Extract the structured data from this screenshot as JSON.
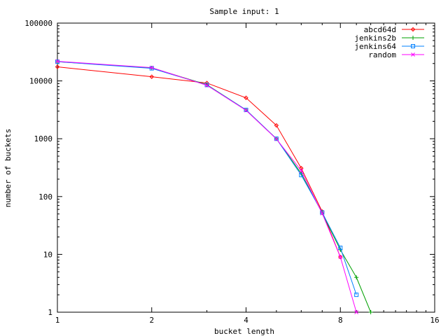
{
  "chart_data": {
    "type": "line",
    "title": "Sample input: 1",
    "xlabel": "bucket length",
    "ylabel": "number of buckets",
    "xscale": "log2",
    "yscale": "log10",
    "xlim": [
      1,
      16
    ],
    "ylim": [
      1,
      100000
    ],
    "x_ticks": [
      1,
      2,
      4,
      8,
      16
    ],
    "y_ticks": [
      1,
      10,
      100,
      1000,
      10000,
      100000
    ],
    "x_tick_labels": [
      "1",
      "2",
      "4",
      "8",
      "16"
    ],
    "y_tick_labels": [
      "1",
      "10",
      "100",
      "1000",
      "10000",
      "100000"
    ],
    "grid": false,
    "legend_position": "top-right",
    "series": [
      {
        "name": "abcd64d",
        "color": "#ff0000",
        "marker": "diamond",
        "points": [
          [
            1,
            17500
          ],
          [
            2,
            11800
          ],
          [
            3,
            9200
          ],
          [
            4,
            5100
          ],
          [
            5,
            1700
          ],
          [
            6,
            310
          ],
          [
            7,
            55
          ],
          [
            8,
            9
          ]
        ]
      },
      {
        "name": "jenkins2b",
        "color": "#00a000",
        "marker": "plus",
        "points": [
          [
            1,
            21500
          ],
          [
            2,
            16800
          ],
          [
            3,
            8600
          ],
          [
            4,
            3150
          ],
          [
            5,
            1000
          ],
          [
            6,
            250
          ],
          [
            7,
            52
          ],
          [
            8,
            12
          ],
          [
            9,
            4
          ],
          [
            10,
            1
          ]
        ]
      },
      {
        "name": "jenkins64",
        "color": "#0080ff",
        "marker": "square",
        "points": [
          [
            1,
            21500
          ],
          [
            2,
            16500
          ],
          [
            3,
            8500
          ],
          [
            4,
            3150
          ],
          [
            5,
            1000
          ],
          [
            6,
            235
          ],
          [
            7,
            53
          ],
          [
            8,
            13
          ],
          [
            9,
            2
          ]
        ]
      },
      {
        "name": "random",
        "color": "#ff00ff",
        "marker": "x",
        "points": [
          [
            1,
            21800
          ],
          [
            2,
            17000
          ],
          [
            3,
            8400
          ],
          [
            4,
            3100
          ],
          [
            5,
            990
          ],
          [
            6,
            280
          ],
          [
            7,
            51
          ],
          [
            8,
            9
          ],
          [
            9,
            1
          ]
        ]
      }
    ]
  }
}
